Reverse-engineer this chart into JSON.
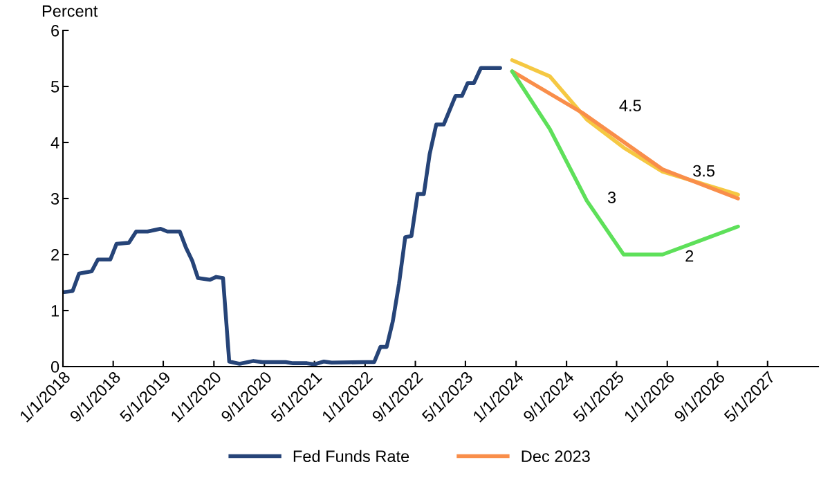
{
  "chart_data": {
    "type": "line",
    "ylabel": "Percent",
    "xlim": [
      "2018-01-01",
      "2028-01-01"
    ],
    "xticks": [
      {
        "value": "2018-01-01",
        "label": "1/1/2018"
      },
      {
        "value": "2018-09-01",
        "label": "9/1/2018"
      },
      {
        "value": "2019-05-01",
        "label": "5/1/2019"
      },
      {
        "value": "2020-01-01",
        "label": "1/1/2020"
      },
      {
        "value": "2020-09-01",
        "label": "9/1/2020"
      },
      {
        "value": "2021-05-01",
        "label": "5/1/2021"
      },
      {
        "value": "2022-01-01",
        "label": "1/1/2022"
      },
      {
        "value": "2022-09-01",
        "label": "9/1/2022"
      },
      {
        "value": "2023-05-01",
        "label": "5/1/2023"
      },
      {
        "value": "2024-01-01",
        "label": "1/1/2024"
      },
      {
        "value": "2024-09-01",
        "label": "9/1/2024"
      },
      {
        "value": "2025-05-01",
        "label": "5/1/2025"
      },
      {
        "value": "2026-01-01",
        "label": "1/1/2026"
      },
      {
        "value": "2026-09-01",
        "label": "9/1/2026"
      },
      {
        "value": "2027-05-01",
        "label": "5/1/2027"
      }
    ],
    "ylim": [
      0,
      6
    ],
    "yticks": [
      0,
      1,
      2,
      3,
      4,
      5,
      6
    ],
    "grid": false,
    "legend": "bottom",
    "marker": "none",
    "line_style": "solid",
    "series": [
      {
        "name": "Fed Funds Rate",
        "color": "#264478",
        "x": [
          "2018-01-08",
          "2018-02-17",
          "2018-03-20",
          "2018-05-20",
          "2018-06-19",
          "2018-08-18",
          "2018-09-17",
          "2018-11-16",
          "2018-12-21",
          "2019-02-14",
          "2019-04-18",
          "2019-05-21",
          "2019-07-20",
          "2019-08-19",
          "2019-09-18",
          "2019-10-16",
          "2019-12-13",
          "2020-01-12",
          "2020-02-14",
          "2020-03-15",
          "2020-05-04",
          "2020-07-10",
          "2020-08-22",
          "2020-12-13",
          "2021-01-18",
          "2021-03-26",
          "2021-05-01",
          "2021-06-16",
          "2021-07-23",
          "2022-01-02",
          "2022-02-14",
          "2022-03-16",
          "2022-04-15",
          "2022-05-15",
          "2022-06-14",
          "2022-07-14",
          "2022-08-13",
          "2022-09-12",
          "2022-10-12",
          "2022-11-09",
          "2022-12-11",
          "2023-01-16",
          "2023-03-14",
          "2023-04-14",
          "2023-05-12",
          "2023-06-11",
          "2023-07-15",
          "2023-10-16"
        ],
        "values": [
          1.33,
          1.35,
          1.66,
          1.7,
          1.91,
          1.91,
          2.19,
          2.21,
          2.41,
          2.41,
          2.46,
          2.41,
          2.41,
          2.12,
          1.89,
          1.58,
          1.55,
          1.6,
          1.58,
          0.09,
          0.05,
          0.1,
          0.08,
          0.08,
          0.06,
          0.06,
          0.04,
          0.09,
          0.07,
          0.08,
          0.08,
          0.35,
          0.35,
          0.81,
          1.48,
          2.31,
          2.33,
          3.08,
          3.08,
          3.79,
          4.32,
          4.32,
          4.83,
          4.83,
          5.06,
          5.06,
          5.33,
          5.33
        ]
      },
      {
        "color": "#f5c842",
        "x": [
          "2023-12-13",
          "2024-06-12",
          "2024-12-08",
          "2025-06-04",
          "2025-12-09",
          "2026-12-09"
        ],
        "values": [
          5.47,
          5.18,
          4.41,
          3.91,
          3.48,
          3.07
        ]
      },
      {
        "name": "Dec 2023",
        "color": "#f98e4a",
        "x": [
          "2023-12-13",
          "2024-11-16",
          "2025-12-09",
          "2026-12-09"
        ],
        "values": [
          5.27,
          4.53,
          3.52,
          3.0
        ]
      },
      {
        "color": "#5ee05a",
        "x": [
          "2023-12-13",
          "2024-06-12",
          "2024-12-08",
          "2025-06-04",
          "2025-12-09",
          "2026-12-09"
        ],
        "values": [
          5.27,
          4.24,
          2.96,
          2.0,
          2.0,
          2.5
        ]
      }
    ],
    "annotations": [
      {
        "text": "4.5",
        "x": "2024-11-16",
        "y": 4.53
      },
      {
        "text": "3.5",
        "x": "2025-12-09",
        "y": 3.52
      },
      {
        "text": "3",
        "x": "2024-12-08",
        "y": 2.96
      },
      {
        "text": "2",
        "x": "2025-12-09",
        "y": 2.0
      }
    ]
  }
}
